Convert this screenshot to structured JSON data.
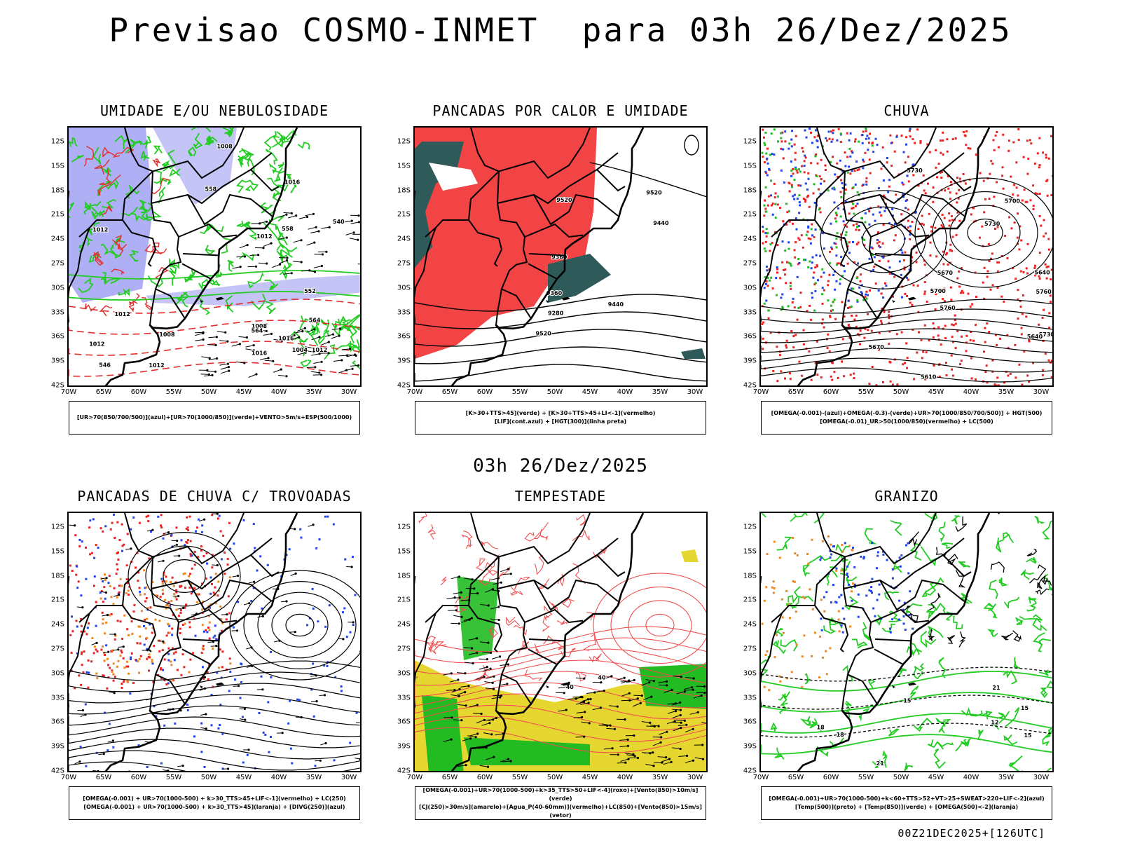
{
  "header": {
    "title": "Previsao COSMO-INMET  para 03h 26/Dez/2025",
    "subtitle": "03h 26/Dez/2025",
    "footer": "00Z21DEC2025+[126UTC]"
  },
  "axes": {
    "lat": [
      "12S",
      "15S",
      "18S",
      "21S",
      "24S",
      "27S",
      "30S",
      "33S",
      "36S",
      "39S",
      "42S"
    ],
    "lon": [
      "70W",
      "65W",
      "60W",
      "55W",
      "50W",
      "45W",
      "40W",
      "35W",
      "30W"
    ]
  },
  "panels": [
    {
      "title": "UMIDADE E/OU NEBULOSIDADE",
      "legend": [
        "[UR>70(850/700/500)](azul)+[UR>70(1000/850)](verde)+VENTO>5m/s+ESP(500/1000)"
      ],
      "labels": [
        "1012",
        "1012",
        "1016",
        "1012",
        "1008",
        "1012",
        "1016",
        "1008",
        "1012",
        "1008",
        "1004",
        "1016",
        "1012",
        "564",
        "558",
        "552",
        "546",
        "540",
        "558",
        "564"
      ],
      "colors": {
        "fill": "#9b9bf2",
        "line1": "#22cc22",
        "line2": "#e03030",
        "wind": "#000000"
      }
    },
    {
      "title": "PANCADAS POR CALOR E UMIDADE",
      "legend": [
        "[K>30+TTS>45](verde) + [K>30+TTS>45+LI<-1](vermelho)",
        "[LIF](cont.azul) + [HGT(300)](linha preta)"
      ],
      "labels": [
        "9520",
        "9520",
        "9520",
        "9440",
        "9440",
        "9360",
        "9360",
        "9280"
      ],
      "colors": {
        "fill": "#f24444",
        "fill2": "#2f5a5a"
      }
    },
    {
      "title": "CHUVA",
      "legend": [
        "[OMEGA(-0.001)-(azul)+OMEGA(-0.3)-(verde)+UR>70(1000/850/700/500)] + HGT(500)",
        "[OMEGA(-0.01)_UR>50(1000/850)(vermelho) + LC(500)"
      ],
      "labels": [
        "5760",
        "5730",
        "5760",
        "5730",
        "5700",
        "5670",
        "5640",
        "5730",
        "5700",
        "5670",
        "5640",
        "5610"
      ],
      "colors": {
        "dots": "#ee2222",
        "dots2": "#2244ee",
        "dots3": "#22bb22"
      }
    },
    {
      "title": "PANCADAS DE CHUVA C/ TROVOADAS",
      "legend": [
        "[OMEGA(-0.001) + UR>70(1000-500) + k>30_TTS>45+LIF<-1](vermelho) + LC(250)",
        "[OMEGA(-0.001) + UR>70(1000-500) + k>30_TTS>45](laranja) + [DIVG(250)](azul)"
      ],
      "labels": [],
      "colors": {
        "dots": "#ee2222",
        "dots2": "#2244ee",
        "dots3": "#ee8822"
      }
    },
    {
      "title": "TEMPESTADE",
      "legend": [
        "[OMEGA(-0.001)+UR>70(1000-500)+k>35_TTS>50+LIF<-4](roxo)+[Vento(850)>10m/s](verde)",
        "[CJ(250)>30m/s](amarelo)+[Agua_P(40-60mm)](vermelho)+LC(850)+[Vento(850)>15m/s](vetor)"
      ],
      "labels": [
        "40",
        "40"
      ],
      "colors": {
        "fill": "#e6d630",
        "fill2": "#22bb22",
        "line": "#f05050"
      }
    },
    {
      "title": "GRANIZO",
      "legend": [
        "[OMEGA(-0.001)+UR>70(1000-500)+k<60+TTS>52+VT>25+SWEAT>220+LIF<-2](azul)",
        "[Temp(500)](preto) + [Temp(850)](verde) + [OMEGA(500)<-2](laranja)"
      ],
      "labels": [
        "15",
        "15",
        "15",
        "12",
        "18",
        "18",
        "21",
        "21"
      ],
      "colors": {
        "line": "#22cc22",
        "dots": "#ee8822",
        "dots2": "#2244ee"
      }
    }
  ]
}
